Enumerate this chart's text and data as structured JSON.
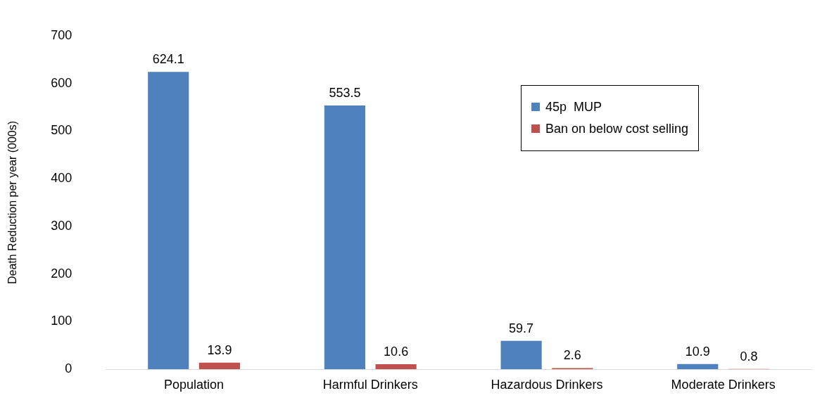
{
  "chart_data": {
    "type": "bar",
    "ylabel": "Death Reduction per year (000s)",
    "categories": [
      "Population",
      "Harmful Drinkers",
      "Hazardous Drinkers",
      "Moderate Drinkers"
    ],
    "series": [
      {
        "name": "45p  MUP",
        "color": "#4f81bd",
        "values": [
          624.1,
          553.5,
          59.7,
          10.9
        ]
      },
      {
        "name": "Ban on below cost selling",
        "color": "#c0504d",
        "values": [
          13.9,
          10.6,
          2.6,
          0.8
        ]
      }
    ],
    "ylim": [
      0,
      700
    ],
    "yticks": [
      0,
      100,
      200,
      300,
      400,
      500,
      600,
      700
    ],
    "grid": false,
    "legend": "top right",
    "data_labels": true
  }
}
